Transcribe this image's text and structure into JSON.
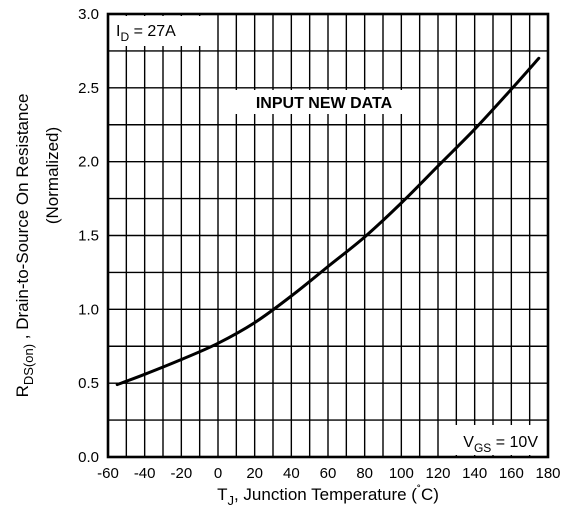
{
  "chart_data": {
    "type": "line",
    "x": [
      -55,
      -40,
      -20,
      0,
      20,
      40,
      60,
      80,
      100,
      120,
      140,
      160,
      175
    ],
    "y": [
      0.49,
      0.56,
      0.66,
      0.77,
      0.91,
      1.09,
      1.29,
      1.49,
      1.72,
      1.97,
      2.22,
      2.49,
      2.7
    ],
    "xticks": [
      -60,
      -40,
      -20,
      0,
      20,
      40,
      60,
      80,
      100,
      120,
      140,
      160,
      180
    ],
    "yticks": [
      "0.0",
      "0.5",
      "1.0",
      "1.5",
      "2.0",
      "2.5",
      "3.0"
    ],
    "xlim": [
      -60,
      180
    ],
    "ylim": [
      0.0,
      3.0
    ],
    "grid": true,
    "xlabel": {
      "main": "T",
      "sub": "J",
      "rest": ", Junction Temperature (",
      "degree": "˚",
      "unit": "C)"
    },
    "ylabel": {
      "line1_main": "R",
      "line1_sub": "DS(on)",
      "line1_rest": " , Drain-to-Source On Resistance",
      "line2": "(Normalized)"
    },
    "annotations": {
      "id_main": "I",
      "id_sub": "D",
      "id_rest": " = 27A",
      "center_text": "INPUT NEW DATA",
      "vgs_main": "V",
      "vgs_sub": "GS",
      "vgs_rest": " = 10V"
    },
    "line_color": "#000000"
  }
}
